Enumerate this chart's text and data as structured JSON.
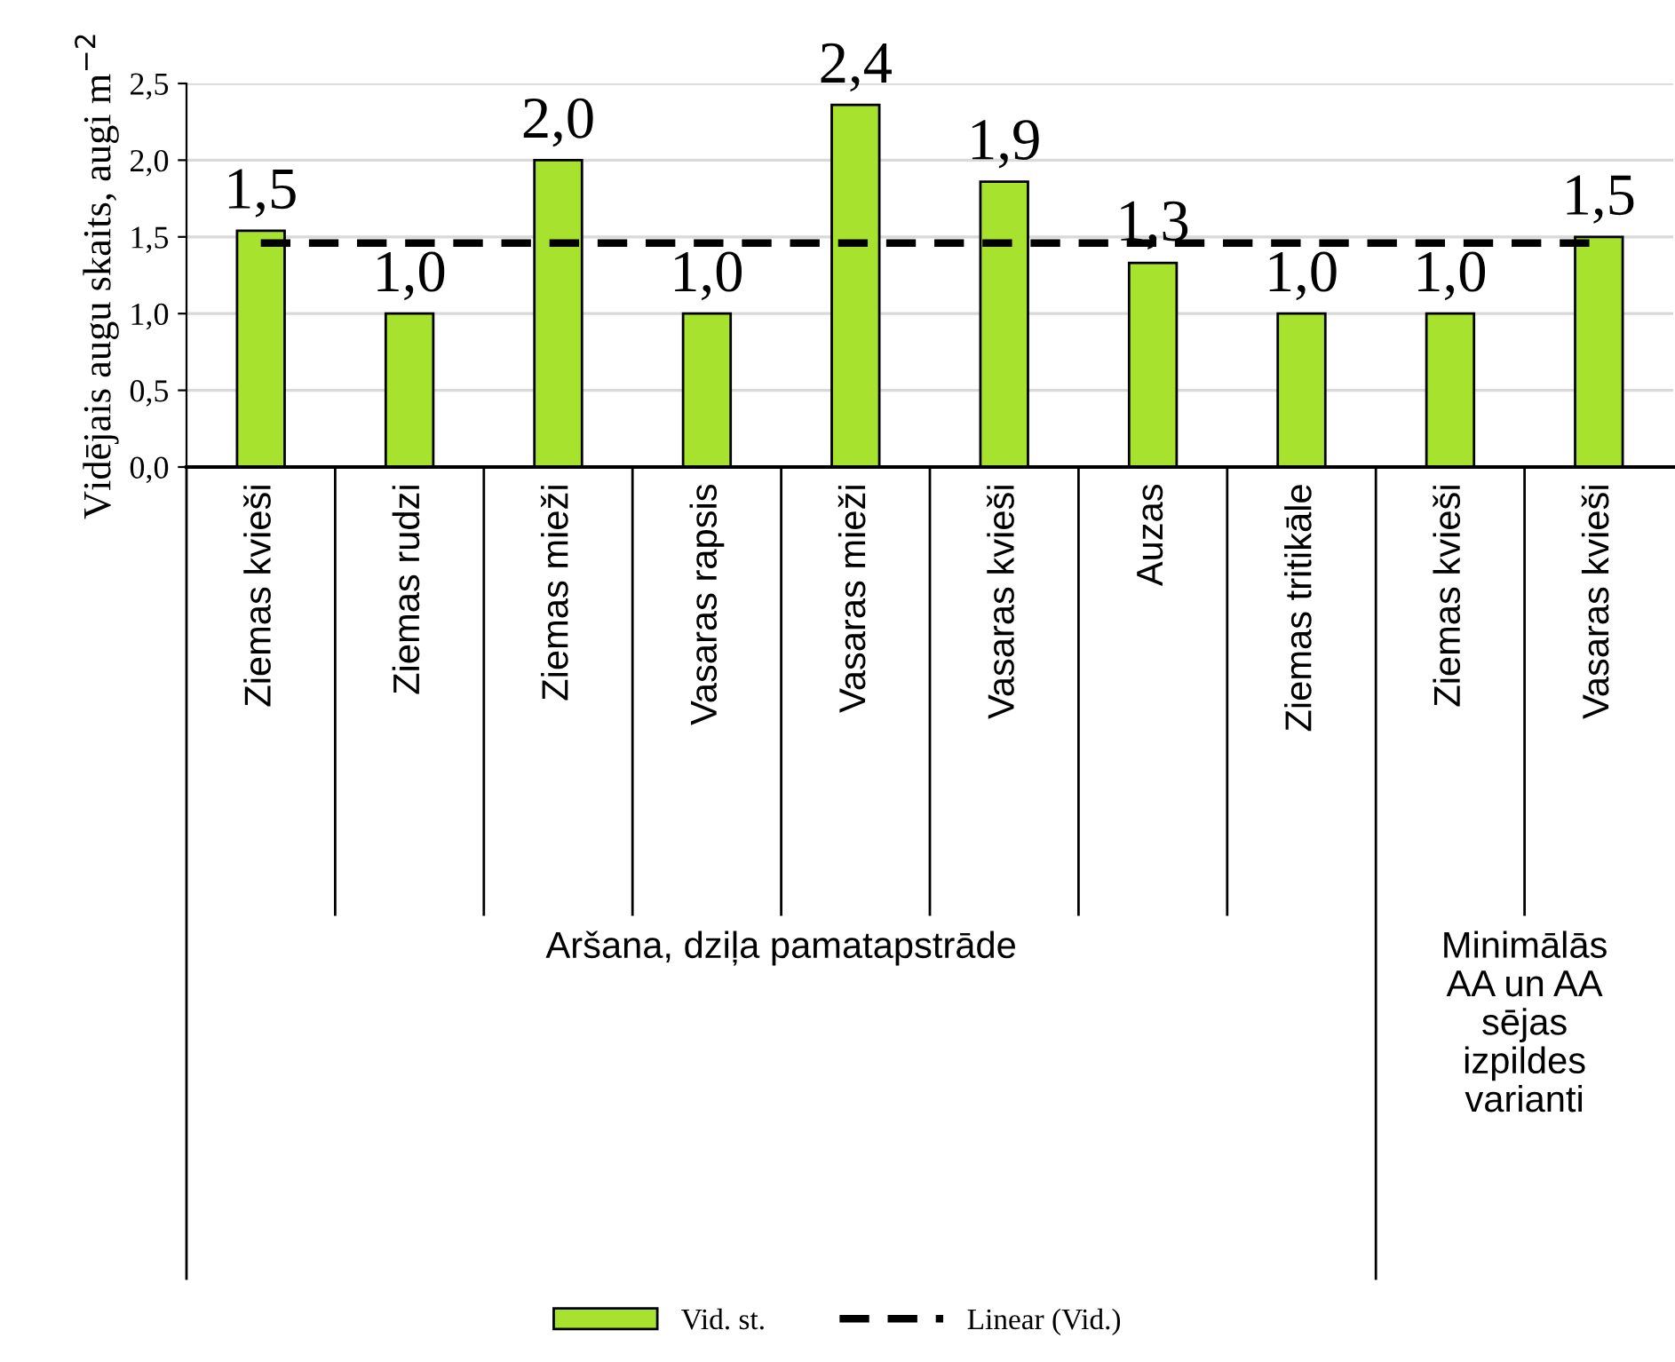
{
  "chart_data": {
    "type": "bar",
    "ylabel": "Vidējais augu skaits, augi m$^{−2}$",
    "categories": [
      "Ziemas kvieši",
      "Ziemas rudzi",
      "Ziemas mieži",
      "Vasaras rapsis",
      "Vasaras mieži",
      "Vasaras kvieši",
      "Auzas",
      "Ziemas tritikāle",
      "Ziemas kvieši",
      "Vasaras kvieši"
    ],
    "series": [
      {
        "name": "Vid. st.",
        "color": "#a6e22e",
        "values": [
          1.54,
          1.0,
          2.0,
          1.0,
          2.36,
          1.86,
          1.33,
          1.0,
          1.0,
          1.5
        ],
        "value_labels": [
          "1,5",
          "1,0",
          "2,0",
          "1,0",
          "2,4",
          "1,9",
          "1,3",
          "1,0",
          "1,0",
          "1,5"
        ]
      },
      {
        "name": "Linear (Vid.)",
        "type": "line",
        "color": "#000000",
        "line_style": "dashed",
        "values": [
          1.46,
          1.46,
          1.46,
          1.46,
          1.46,
          1.46,
          1.46,
          1.46,
          1.46,
          1.46
        ]
      }
    ],
    "annotations": [
      "Aršana, dziļa pamatapstrāde",
      "Minimālās AA un AA sējas izpildes varianti"
    ],
    "ylim": [
      0,
      2.5
    ],
    "yticks": [
      {
        "value": 0,
        "label": "0,0"
      },
      {
        "value": 0.5,
        "label": "0,5"
      },
      {
        "value": 1.0,
        "label": "1,0"
      },
      {
        "value": 1.5,
        "label": "1,5"
      },
      {
        "value": 2.0,
        "label": "2,0"
      },
      {
        "value": 2.5,
        "label": "2,5"
      }
    ],
    "grid": "y",
    "legend": "bottom"
  }
}
